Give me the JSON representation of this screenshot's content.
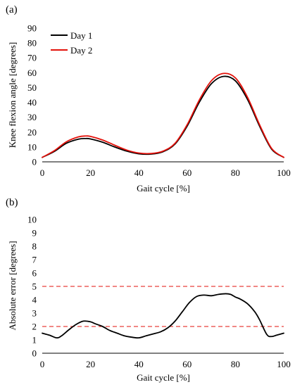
{
  "chart_data": [
    {
      "panel_label": "(a)",
      "type": "line",
      "xlabel": "Gait cycle [%]",
      "ylabel": "Knee flexion angle [degrees]",
      "xlim": [
        0,
        100
      ],
      "ylim": [
        0,
        90
      ],
      "xticks": [
        0,
        20,
        40,
        60,
        80,
        100
      ],
      "yticks": [
        0,
        10,
        20,
        30,
        40,
        50,
        60,
        70,
        80,
        90
      ],
      "legend": {
        "position": "top-left"
      },
      "grid": false,
      "series": [
        {
          "name": "Day 1",
          "color": "#000000",
          "x": [
            0,
            5,
            10,
            15,
            18,
            20,
            25,
            30,
            35,
            40,
            45,
            50,
            55,
            60,
            65,
            70,
            75,
            80,
            85,
            90,
            95,
            100
          ],
          "y": [
            3,
            7,
            12.5,
            15.3,
            15.7,
            15.4,
            13.2,
            10,
            7.2,
            5.4,
            5.2,
            6.8,
            12,
            24,
            40,
            52.5,
            57.5,
            54.5,
            42,
            24,
            8.5,
            3
          ]
        },
        {
          "name": "Day 2",
          "color": "#e3120b",
          "x": [
            0,
            5,
            10,
            15,
            18,
            20,
            25,
            30,
            35,
            40,
            45,
            50,
            55,
            60,
            65,
            70,
            75,
            80,
            85,
            90,
            95,
            100
          ],
          "y": [
            3,
            7.5,
            13.5,
            16.8,
            17.4,
            17.1,
            14.7,
            11.2,
            7.9,
            5.9,
            5.6,
            7.2,
            12.5,
            25,
            41.5,
            54.5,
            59.5,
            56.5,
            43.5,
            25,
            9,
            3
          ]
        }
      ]
    },
    {
      "panel_label": "(b)",
      "type": "line",
      "xlabel": "Gait cycle [%]",
      "ylabel": "Absolute error [degrees]",
      "xlim": [
        0,
        100
      ],
      "ylim": [
        0,
        10
      ],
      "xticks": [
        0,
        20,
        40,
        60,
        80,
        100
      ],
      "yticks": [
        0,
        1,
        2,
        3,
        4,
        5,
        6,
        7,
        8,
        9,
        10
      ],
      "grid": false,
      "reference_lines": [
        {
          "y": 5,
          "color": "#e3120b",
          "style": "dashed"
        },
        {
          "y": 2,
          "color": "#e3120b",
          "style": "dashed"
        }
      ],
      "series": [
        {
          "color": "#000000",
          "x": [
            0,
            3,
            6,
            8,
            11,
            14,
            17,
            20,
            22,
            25,
            28,
            31,
            34,
            37,
            40,
            43,
            46,
            49,
            52,
            55,
            58,
            61,
            64,
            67,
            70,
            73,
            76,
            78,
            80,
            82,
            85,
            88,
            90,
            93,
            95,
            97,
            100
          ],
          "y": [
            1.5,
            1.35,
            1.15,
            1.3,
            1.75,
            2.15,
            2.4,
            2.35,
            2.2,
            2.0,
            1.7,
            1.5,
            1.3,
            1.2,
            1.15,
            1.3,
            1.45,
            1.6,
            1.9,
            2.4,
            3.1,
            3.8,
            4.25,
            4.35,
            4.3,
            4.4,
            4.45,
            4.4,
            4.2,
            4.05,
            3.7,
            3.1,
            2.5,
            1.4,
            1.25,
            1.35,
            1.5
          ]
        }
      ]
    }
  ]
}
